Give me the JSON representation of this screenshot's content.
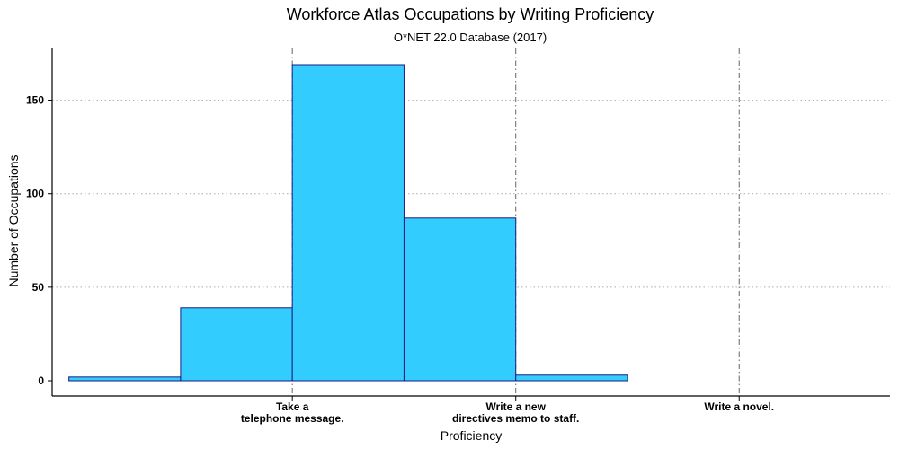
{
  "chart_data": {
    "type": "bar",
    "title": "Workforce Atlas Occupations by Writing Proficiency",
    "subtitle": "O*NET 22.0 Database (2017)",
    "xlabel": "Proficiency",
    "ylabel": "Number of Occupations",
    "ylim": [
      0,
      175
    ],
    "xlim": [
      0.55,
      4.3
    ],
    "yticks": [
      0,
      50,
      100,
      150
    ],
    "bins": [
      {
        "x0": 0.625,
        "x1": 1.125,
        "value": 2
      },
      {
        "x0": 1.125,
        "x1": 1.625,
        "value": 39
      },
      {
        "x0": 1.625,
        "x1": 2.125,
        "value": 169
      },
      {
        "x0": 2.125,
        "x1": 2.625,
        "value": 87
      },
      {
        "x0": 2.625,
        "x1": 3.125,
        "value": 3
      }
    ],
    "reference_lines": [
      1.625,
      2.625,
      3.625
    ],
    "xticks": [
      {
        "x": 1.625,
        "lines": [
          "Take a",
          "telephone message."
        ]
      },
      {
        "x": 2.625,
        "lines": [
          "Write a new",
          "directives memo to staff."
        ]
      },
      {
        "x": 3.625,
        "lines": [
          "Write a novel."
        ]
      }
    ],
    "grid": {
      "horizontal": true,
      "style": "dotted"
    },
    "colors": {
      "bar_fill": "#33CCFF",
      "bar_stroke": "#1A1A80",
      "reference_line": "#666666",
      "grid": "#aaaaaa"
    }
  }
}
